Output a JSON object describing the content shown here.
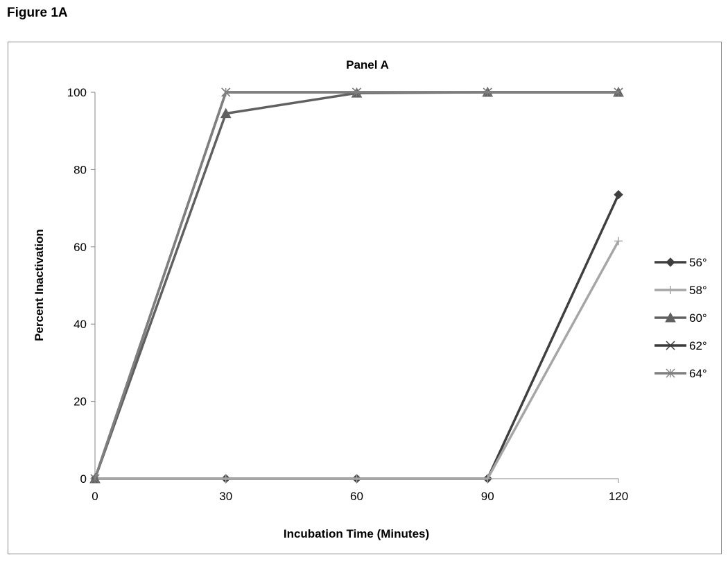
{
  "figure_label": "Figure 1A",
  "chart_data": {
    "type": "line",
    "title": "Panel A",
    "xlabel": "Incubation Time (Minutes)",
    "ylabel": "Percent Inactivation",
    "x": [
      0,
      30,
      60,
      90,
      120
    ],
    "x_tick_labels": [
      "0",
      "30",
      "60",
      "90",
      "120"
    ],
    "xlim": [
      0,
      120
    ],
    "ylim": [
      0,
      100
    ],
    "y_ticks": [
      0,
      20,
      40,
      60,
      80,
      100
    ],
    "y_tick_labels": [
      "0",
      "20",
      "40",
      "60",
      "80",
      "100"
    ],
    "grid": false,
    "legend_position": "right",
    "series": [
      {
        "name": "56°",
        "values": [
          0,
          0,
          0,
          0,
          73.5
        ],
        "marker": "diamond",
        "color": "#3f3f3f"
      },
      {
        "name": "58°",
        "values": [
          0,
          0,
          0,
          0,
          61.5
        ],
        "marker": "plus",
        "color": "#a6a6a6"
      },
      {
        "name": "60°",
        "values": [
          0,
          94.5,
          99.8,
          100,
          100
        ],
        "marker": "triangle",
        "color": "#606060"
      },
      {
        "name": "62°",
        "values": [
          0,
          100,
          100,
          100,
          100
        ],
        "marker": "x",
        "color": "#3a3a3a"
      },
      {
        "name": "64°",
        "values": [
          0,
          100,
          100,
          100,
          100
        ],
        "marker": "star",
        "color": "#7f7f7f"
      }
    ]
  }
}
